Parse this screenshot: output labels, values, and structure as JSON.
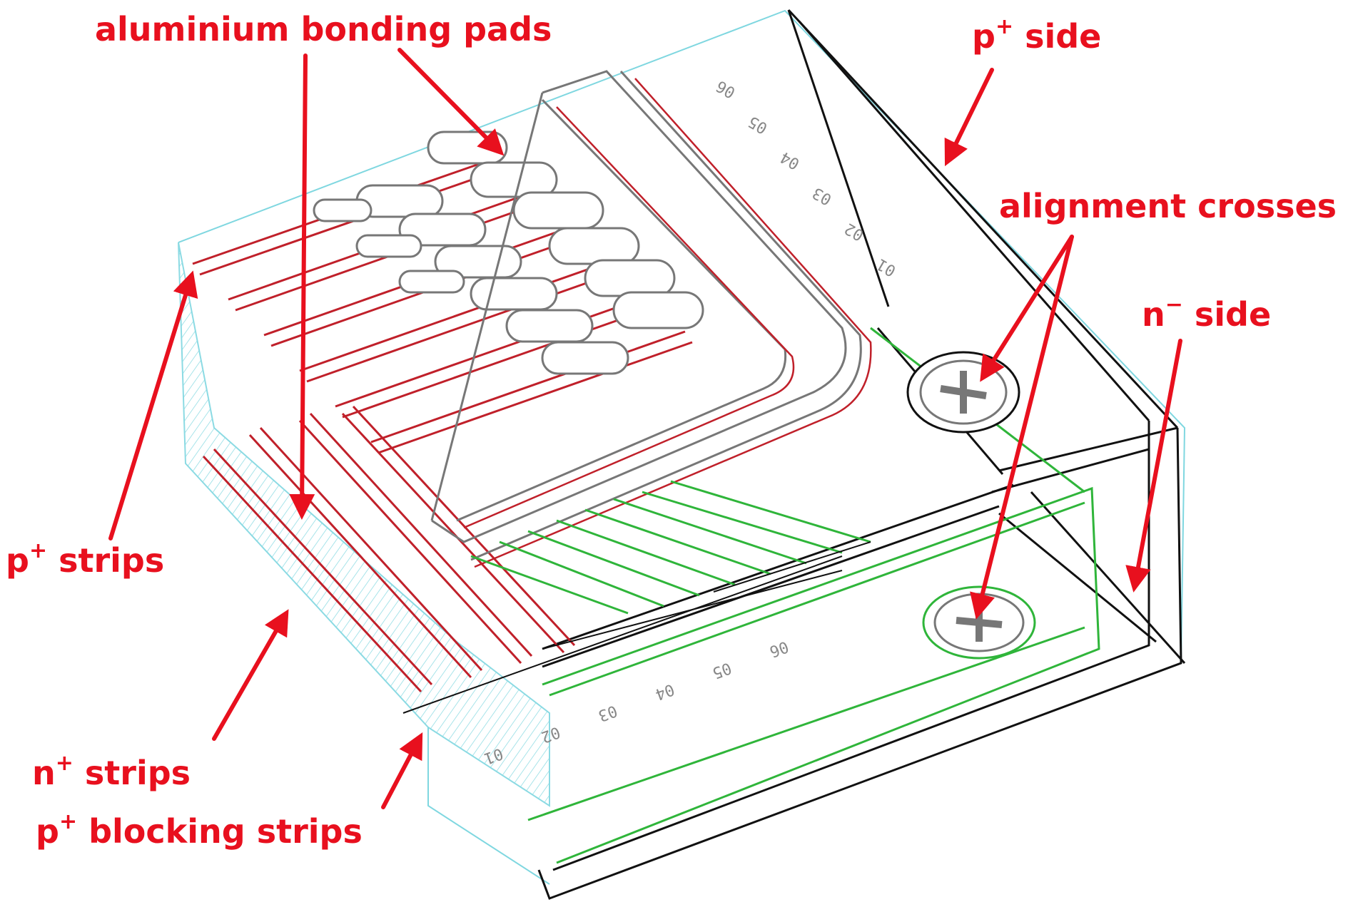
{
  "labels": {
    "bonding_pads": "aluminium bonding pads",
    "p_side": {
      "base": "p",
      "sup": "+",
      "rest": " side"
    },
    "alignment": "alignment crosses",
    "n_side": {
      "base": "n",
      "sup": "−",
      "rest": " side"
    },
    "p_strips": {
      "base": "p",
      "sup": "+",
      "rest": " strips"
    },
    "n_strips": {
      "base": "n",
      "sup": "+",
      "rest": " strips"
    },
    "p_blocking": {
      "base": "p",
      "sup": "+",
      "rest": " blocking strips"
    }
  },
  "colors": {
    "annotation": "#e8101e",
    "outline": "#111111",
    "implant_p": "#c0202a",
    "implant_n": "#2fb53a",
    "substrate": "#7fd7e0",
    "metal": "#777777"
  },
  "engraved_numbers_top": [
    "06",
    "05",
    "04",
    "03",
    "02",
    "01"
  ],
  "engraved_numbers_front": [
    "06",
    "05",
    "04",
    "03",
    "02",
    "01"
  ]
}
